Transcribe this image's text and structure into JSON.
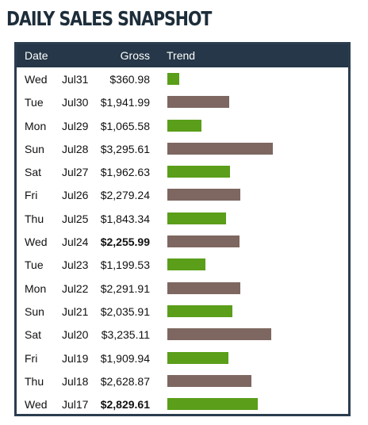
{
  "title": "DAILY SALES SNAPSHOT",
  "columns": {
    "date": "Date",
    "gross": "Gross",
    "trend": "Trend"
  },
  "colors": {
    "header_bg": "#253748",
    "bar_green": "#5a9e1a",
    "bar_brown": "#7d6760"
  },
  "rows": [
    {
      "day": "Wed",
      "date": "Jul31",
      "gross": "$360.98",
      "value": 360.98,
      "bold": false,
      "color": "green"
    },
    {
      "day": "Tue",
      "date": "Jul30",
      "gross": "$1,941.99",
      "value": 1941.99,
      "bold": false,
      "color": "brown"
    },
    {
      "day": "Mon",
      "date": "Jul29",
      "gross": "$1,065.58",
      "value": 1065.58,
      "bold": false,
      "color": "green"
    },
    {
      "day": "Sun",
      "date": "Jul28",
      "gross": "$3,295.61",
      "value": 3295.61,
      "bold": false,
      "color": "brown"
    },
    {
      "day": "Sat",
      "date": "Jul27",
      "gross": "$1,962.63",
      "value": 1962.63,
      "bold": false,
      "color": "green"
    },
    {
      "day": "Fri",
      "date": "Jul26",
      "gross": "$2,279.24",
      "value": 2279.24,
      "bold": false,
      "color": "brown"
    },
    {
      "day": "Thu",
      "date": "Jul25",
      "gross": "$1,843.34",
      "value": 1843.34,
      "bold": false,
      "color": "green"
    },
    {
      "day": "Wed",
      "date": "Jul24",
      "gross": "$2,255.99",
      "value": 2255.99,
      "bold": true,
      "color": "brown"
    },
    {
      "day": "Tue",
      "date": "Jul23",
      "gross": "$1,199.53",
      "value": 1199.53,
      "bold": false,
      "color": "green"
    },
    {
      "day": "Mon",
      "date": "Jul22",
      "gross": "$2,291.91",
      "value": 2291.91,
      "bold": false,
      "color": "brown"
    },
    {
      "day": "Sun",
      "date": "Jul21",
      "gross": "$2,035.91",
      "value": 2035.91,
      "bold": false,
      "color": "green"
    },
    {
      "day": "Sat",
      "date": "Jul20",
      "gross": "$3,235.11",
      "value": 3235.11,
      "bold": false,
      "color": "brown"
    },
    {
      "day": "Fri",
      "date": "Jul19",
      "gross": "$1,909.94",
      "value": 1909.94,
      "bold": false,
      "color": "green"
    },
    {
      "day": "Thu",
      "date": "Jul18",
      "gross": "$2,628.87",
      "value": 2628.87,
      "bold": false,
      "color": "brown"
    },
    {
      "day": "Wed",
      "date": "Jul17",
      "gross": "$2,829.61",
      "value": 2829.61,
      "bold": true,
      "color": "green"
    }
  ]
}
